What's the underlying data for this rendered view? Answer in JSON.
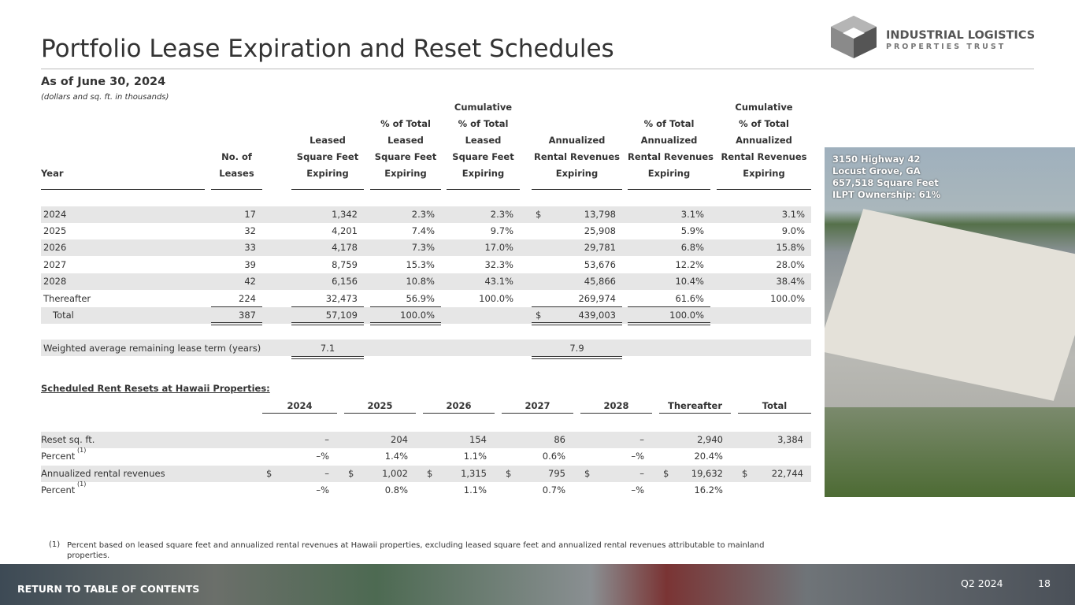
{
  "title": "Portfolio Lease Expiration and Reset Schedules",
  "logo": {
    "name": "INDUSTRIAL LOGISTICS",
    "subname": "PROPERTIES TRUST"
  },
  "subtitle": "As of June 30, 2024",
  "unit_note": "(dollars and sq. ft. in thousands)",
  "table1": {
    "headers": {
      "year": [
        "Year"
      ],
      "leases": [
        "No. of",
        "Leases"
      ],
      "sqft": [
        "Leased",
        "Square Feet",
        "Expiring"
      ],
      "pct": [
        "% of Total",
        "Leased",
        "Square Feet",
        "Expiring"
      ],
      "cum": [
        "Cumulative",
        "% of Total",
        "Leased",
        "Square Feet",
        "Expiring"
      ],
      "rev": [
        "Annualized",
        "Rental Revenues",
        "Expiring"
      ],
      "revpct": [
        "% of Total",
        "Annualized",
        "Rental Revenues",
        "Expiring"
      ],
      "revcum": [
        "Cumulative",
        "% of Total",
        "Annualized",
        "Rental Revenues",
        "Expiring"
      ]
    },
    "rows": [
      {
        "year": "2024",
        "leases": "17",
        "sqft": "1,342",
        "pct": "2.3%",
        "cum": "2.3%",
        "currency": "$",
        "rev": "13,798",
        "revpct": "3.1%",
        "revcum": "3.1%"
      },
      {
        "year": "2025",
        "leases": "32",
        "sqft": "4,201",
        "pct": "7.4%",
        "cum": "9.7%",
        "rev": "25,908",
        "revpct": "5.9%",
        "revcum": "9.0%"
      },
      {
        "year": "2026",
        "leases": "33",
        "sqft": "4,178",
        "pct": "7.3%",
        "cum": "17.0%",
        "rev": "29,781",
        "revpct": "6.8%",
        "revcum": "15.8%"
      },
      {
        "year": "2027",
        "leases": "39",
        "sqft": "8,759",
        "pct": "15.3%",
        "cum": "32.3%",
        "rev": "53,676",
        "revpct": "12.2%",
        "revcum": "28.0%"
      },
      {
        "year": "2028",
        "leases": "42",
        "sqft": "6,156",
        "pct": "10.8%",
        "cum": "43.1%",
        "rev": "45,866",
        "revpct": "10.4%",
        "revcum": "38.4%"
      },
      {
        "year": "Thereafter",
        "leases": "224",
        "sqft": "32,473",
        "pct": "56.9%",
        "cum": "100.0%",
        "rev": "269,974",
        "revpct": "61.6%",
        "revcum": "100.0%"
      },
      {
        "year": "Total",
        "leases": "387",
        "sqft": "57,109",
        "pct": "100.0%",
        "currency": "$",
        "rev": "439,003",
        "revpct": "100.0%"
      }
    ],
    "weighted": {
      "label": "Weighted average remaining lease term (years)",
      "sqft": "7.1",
      "rev": "7.9"
    }
  },
  "table2": {
    "title": "Scheduled Rent Resets at Hawaii Properties:",
    "headers": [
      "2024",
      "2025",
      "2026",
      "2027",
      "2028",
      "Thereafter",
      "Total"
    ],
    "rows": [
      {
        "label": "Reset sq. ft.",
        "values": [
          "–",
          "204",
          "154",
          "86",
          "–",
          "2,940",
          "3,384"
        ]
      },
      {
        "label": "Percent",
        "note": "(1)",
        "values": [
          "–%",
          "1.4%",
          "1.1%",
          "0.6%",
          "–%",
          "20.4%"
        ]
      },
      {
        "label": "Annualized rental revenues",
        "currency": "$",
        "values": [
          "–",
          "1,002",
          "1,315",
          "795",
          "–",
          "19,632",
          "22,744"
        ]
      },
      {
        "label": "Percent",
        "note": "(1)",
        "values": [
          "–%",
          "0.8%",
          "1.1%",
          "0.7%",
          "–%",
          "16.2%"
        ]
      }
    ]
  },
  "footnote": {
    "marker": "(1)",
    "text": "Percent based on leased square feet and annualized rental revenues at Hawaii properties, excluding leased square feet and annualized rental revenues attributable to mainland properties."
  },
  "photo_caption": [
    "3150 Highway 42",
    "Locust Grove, GA",
    "657,518 Square Feet",
    "ILPT Ownership: 61%"
  ],
  "footer": {
    "link": "RETURN TO TABLE OF CONTENTS",
    "period": "Q2 2024",
    "page": "18"
  }
}
